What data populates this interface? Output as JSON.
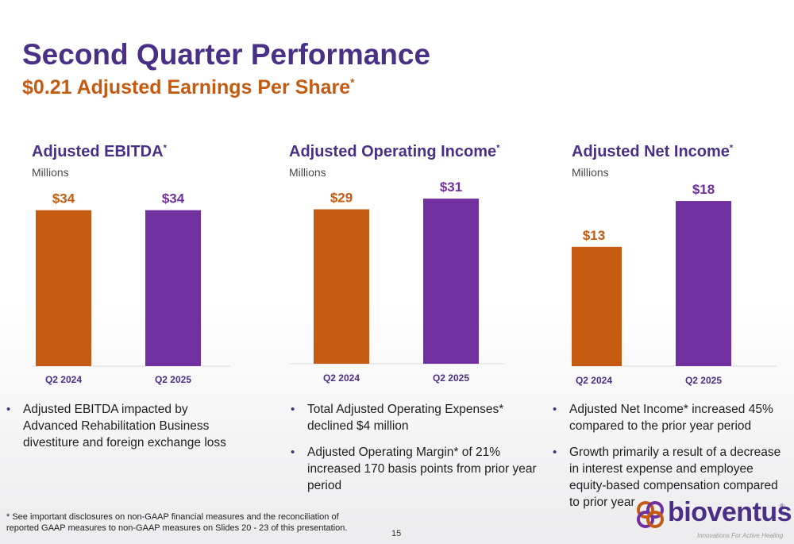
{
  "header": {
    "title": "Second Quarter Performance",
    "subtitle": "$0.21 Adjusted Earnings Per Share",
    "subtitle_mark": "*"
  },
  "colors": {
    "purple": "#7030a0",
    "orange": "#c55a11",
    "title": "#4a2f86"
  },
  "panels": [
    {
      "title": "Adjusted EBITDA",
      "mark": "*",
      "units": "Millions",
      "bullets": [
        "Adjusted EBITDA impacted by Advanced Rehabilitation Business divestiture and foreign exchange loss"
      ]
    },
    {
      "title": "Adjusted Operating Income",
      "mark": "*",
      "units": "Millions",
      "bullets": [
        "Total Adjusted Operating Expenses* declined $4 million",
        "Adjusted Operating Margin* of 21% increased 170 basis points from prior year period"
      ]
    },
    {
      "title": "Adjusted Net Income",
      "mark": "*",
      "units": "Millions",
      "bullets": [
        "Adjusted Net Income* increased 45% compared to the prior year period",
        "Growth primarily a result of a decrease in interest expense and employee equity-based compensation compared to prior year"
      ]
    }
  ],
  "chart_data": [
    {
      "type": "bar",
      "title": "Adjusted EBITDA*",
      "ylabel": "Millions",
      "categories": [
        "Q2 2024",
        "Q2 2025"
      ],
      "values": [
        34,
        34
      ],
      "data_labels": [
        "$34",
        "$34"
      ],
      "ylim": [
        0,
        40
      ],
      "grid": false,
      "legend": "none"
    },
    {
      "type": "bar",
      "title": "Adjusted Operating Income*",
      "ylabel": "Millions",
      "categories": [
        "Q2 2024",
        "Q2 2025"
      ],
      "values": [
        29,
        31
      ],
      "data_labels": [
        "$29",
        "$31"
      ],
      "ylim": [
        0,
        34
      ],
      "grid": false,
      "legend": "none"
    },
    {
      "type": "bar",
      "title": "Adjusted Net Income*",
      "ylabel": "Millions",
      "categories": [
        "Q2 2024",
        "Q2 2025"
      ],
      "values": [
        13,
        18
      ],
      "data_labels": [
        "$13",
        "$18"
      ],
      "ylim": [
        0,
        20
      ],
      "grid": false,
      "legend": "none"
    }
  ],
  "footnote": {
    "mark": "*",
    "text": "See important disclosures on non-GAAP financial measures and the reconciliation of reported GAAP measures to non-GAAP measures on Slides 20 - 23 of this presentation."
  },
  "page_number": "15",
  "logo": {
    "name": "bioventus",
    "reg": "®",
    "tagline": "Innovations For Active Healing",
    "icon": "bioventus-knot-icon"
  }
}
